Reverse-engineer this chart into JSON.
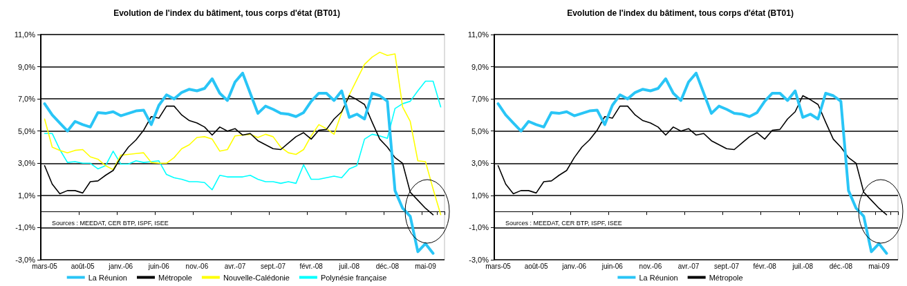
{
  "chart_data": [
    {
      "type": "line",
      "title": "Evolution de l'index du bâtiment, tous corps d'état (BT01)",
      "categories": [
        "mars-05",
        null,
        null,
        null,
        null,
        "août-05",
        null,
        null,
        null,
        null,
        "janv.-06",
        null,
        null,
        null,
        null,
        "juin-06",
        null,
        null,
        null,
        null,
        "nov.-06",
        null,
        null,
        null,
        null,
        "avr.-07",
        null,
        null,
        null,
        null,
        "sept.-07",
        null,
        null,
        null,
        null,
        "févr.-08",
        null,
        null,
        null,
        null,
        "juil.-08",
        null,
        null,
        null,
        null,
        "déc.-08",
        null,
        null,
        null,
        null,
        "mai-09",
        null,
        null
      ],
      "series": [
        {
          "name": "La Réunion",
          "color": "#29c5f6",
          "values": [
            6.7,
            6.0,
            5.5,
            5.0,
            5.6,
            5.4,
            5.25,
            6.15,
            6.1,
            6.2,
            5.95,
            6.1,
            6.25,
            6.3,
            5.4,
            6.6,
            7.25,
            7.0,
            7.4,
            7.6,
            7.5,
            7.65,
            8.25,
            7.35,
            6.9,
            8.05,
            8.6,
            7.35,
            6.1,
            6.55,
            6.35,
            6.1,
            6.05,
            5.9,
            6.15,
            6.85,
            7.35,
            7.35,
            6.9,
            7.5,
            5.85,
            6.05,
            5.75,
            7.35,
            7.2,
            6.85,
            1.3,
            0.2,
            -0.3,
            -2.5,
            -2.0,
            -2.6,
            null
          ]
        },
        {
          "name": "Métropole",
          "color": "#000000",
          "values": [
            2.85,
            1.7,
            1.1,
            1.3,
            1.3,
            1.15,
            1.85,
            1.9,
            2.25,
            2.55,
            3.35,
            4.0,
            4.45,
            5.05,
            5.9,
            5.8,
            6.55,
            6.55,
            6.0,
            5.65,
            5.5,
            5.25,
            4.75,
            5.25,
            5.0,
            5.15,
            4.75,
            4.85,
            4.4,
            4.15,
            3.9,
            3.85,
            4.25,
            4.65,
            4.9,
            4.5,
            5.05,
            5.1,
            5.75,
            6.2,
            7.2,
            6.95,
            6.65,
            5.55,
            4.5,
            4.0,
            3.35,
            3.0,
            1.2,
            0.7,
            0.2,
            -0.2,
            null
          ]
        },
        {
          "name": "Nouvelle-Calédonie",
          "color": "#ffff00",
          "values": [
            5.75,
            4.0,
            3.8,
            3.65,
            3.8,
            3.85,
            3.4,
            3.25,
            2.85,
            2.6,
            3.5,
            3.55,
            3.6,
            3.65,
            3.05,
            3.0,
            3.0,
            3.35,
            3.9,
            4.15,
            4.6,
            4.65,
            4.5,
            3.75,
            3.85,
            4.7,
            4.75,
            4.8,
            4.6,
            4.8,
            4.65,
            4.0,
            3.65,
            3.55,
            3.85,
            4.7,
            5.4,
            5.15,
            4.8,
            6.15,
            7.25,
            8.2,
            9.15,
            9.6,
            9.9,
            9.7,
            9.8,
            6.5,
            5.6,
            3.15,
            3.1,
            1.4,
            -0.2
          ]
        },
        {
          "name": "Polynésie française",
          "color": "#00ffff",
          "values": [
            4.85,
            4.85,
            3.85,
            3.05,
            3.1,
            3.0,
            3.0,
            2.65,
            2.85,
            3.75,
            2.95,
            2.95,
            3.15,
            3.05,
            3.1,
            3.15,
            2.3,
            2.1,
            2.0,
            1.85,
            1.85,
            1.8,
            1.35,
            2.25,
            2.15,
            2.15,
            2.15,
            2.25,
            2.0,
            1.85,
            1.85,
            1.75,
            1.85,
            1.75,
            2.9,
            2.0,
            2.0,
            2.1,
            2.2,
            2.1,
            2.65,
            2.85,
            4.5,
            4.8,
            4.7,
            4.55,
            6.4,
            6.7,
            6.85,
            7.5,
            8.1,
            8.1,
            6.5
          ]
        }
      ],
      "ylim": [
        -3,
        11
      ],
      "yticks": [
        {
          "value": -3,
          "label": "-3,0%"
        },
        {
          "value": -1,
          "label": "-1,0%"
        },
        {
          "value": 1,
          "label": "1,0%"
        },
        {
          "value": 3,
          "label": "3,0%"
        },
        {
          "value": 5,
          "label": "5,0%"
        },
        {
          "value": 7,
          "label": "7,0%"
        },
        {
          "value": 9,
          "label": "9,0%"
        },
        {
          "value": 11,
          "label": "11,0%"
        }
      ],
      "grid": "y",
      "legend": "bottom",
      "marker": "none",
      "line_style": "solid",
      "annotations": [
        "Sources : MEEDAT, CER BTP, ISPF, ISEE"
      ]
    },
    {
      "type": "line",
      "title": "Evolution de l'index du bâtiment, tous corps d'état (BT01)",
      "categories": [
        "mars-05",
        null,
        null,
        null,
        null,
        "août-05",
        null,
        null,
        null,
        null,
        "janv.-06",
        null,
        null,
        null,
        null,
        "juin-06",
        null,
        null,
        null,
        null,
        "nov.-06",
        null,
        null,
        null,
        null,
        "avr.-07",
        null,
        null,
        null,
        null,
        "sept.-07",
        null,
        null,
        null,
        null,
        "févr.-08",
        null,
        null,
        null,
        null,
        "juil.-08",
        null,
        null,
        null,
        null,
        "déc.-08",
        null,
        null,
        null,
        null,
        "mai-09",
        null,
        null
      ],
      "series": [
        {
          "name": "La Réunion",
          "color": "#29c5f6",
          "values": [
            6.7,
            6.0,
            5.5,
            5.0,
            5.6,
            5.4,
            5.25,
            6.15,
            6.1,
            6.2,
            5.95,
            6.1,
            6.25,
            6.3,
            5.4,
            6.6,
            7.25,
            7.0,
            7.4,
            7.6,
            7.5,
            7.65,
            8.25,
            7.35,
            6.9,
            8.05,
            8.6,
            7.35,
            6.1,
            6.55,
            6.35,
            6.1,
            6.05,
            5.9,
            6.15,
            6.85,
            7.35,
            7.35,
            6.9,
            7.5,
            5.85,
            6.05,
            5.75,
            7.35,
            7.2,
            6.85,
            1.3,
            0.2,
            -0.3,
            -2.5,
            -2.0,
            -2.6,
            null
          ]
        },
        {
          "name": "Métropole",
          "color": "#000000",
          "values": [
            2.85,
            1.7,
            1.1,
            1.3,
            1.3,
            1.15,
            1.85,
            1.9,
            2.25,
            2.55,
            3.35,
            4.0,
            4.45,
            5.05,
            5.9,
            5.8,
            6.55,
            6.55,
            6.0,
            5.65,
            5.5,
            5.25,
            4.75,
            5.25,
            5.0,
            5.15,
            4.75,
            4.85,
            4.4,
            4.15,
            3.9,
            3.85,
            4.25,
            4.65,
            4.9,
            4.5,
            5.05,
            5.1,
            5.75,
            6.2,
            7.2,
            6.95,
            6.65,
            5.55,
            4.5,
            4.0,
            3.35,
            3.0,
            1.2,
            0.7,
            0.2,
            -0.2,
            null
          ]
        }
      ],
      "ylim": [
        -3,
        11
      ],
      "yticks": [
        {
          "value": -3,
          "label": "-3,0%"
        },
        {
          "value": -1,
          "label": "-1,0%"
        },
        {
          "value": 1,
          "label": "1,0%"
        },
        {
          "value": 3,
          "label": "3,0%"
        },
        {
          "value": 5,
          "label": "5,0%"
        },
        {
          "value": 7,
          "label": "7,0%"
        },
        {
          "value": 9,
          "label": "9,0%"
        },
        {
          "value": 11,
          "label": "11,0%"
        }
      ],
      "grid": "y",
      "legend": "bottom",
      "marker": "none",
      "line_style": "solid",
      "annotations": [
        "Sources : MEEDAT, CER BTP, ISPF, ISEE"
      ]
    }
  ]
}
